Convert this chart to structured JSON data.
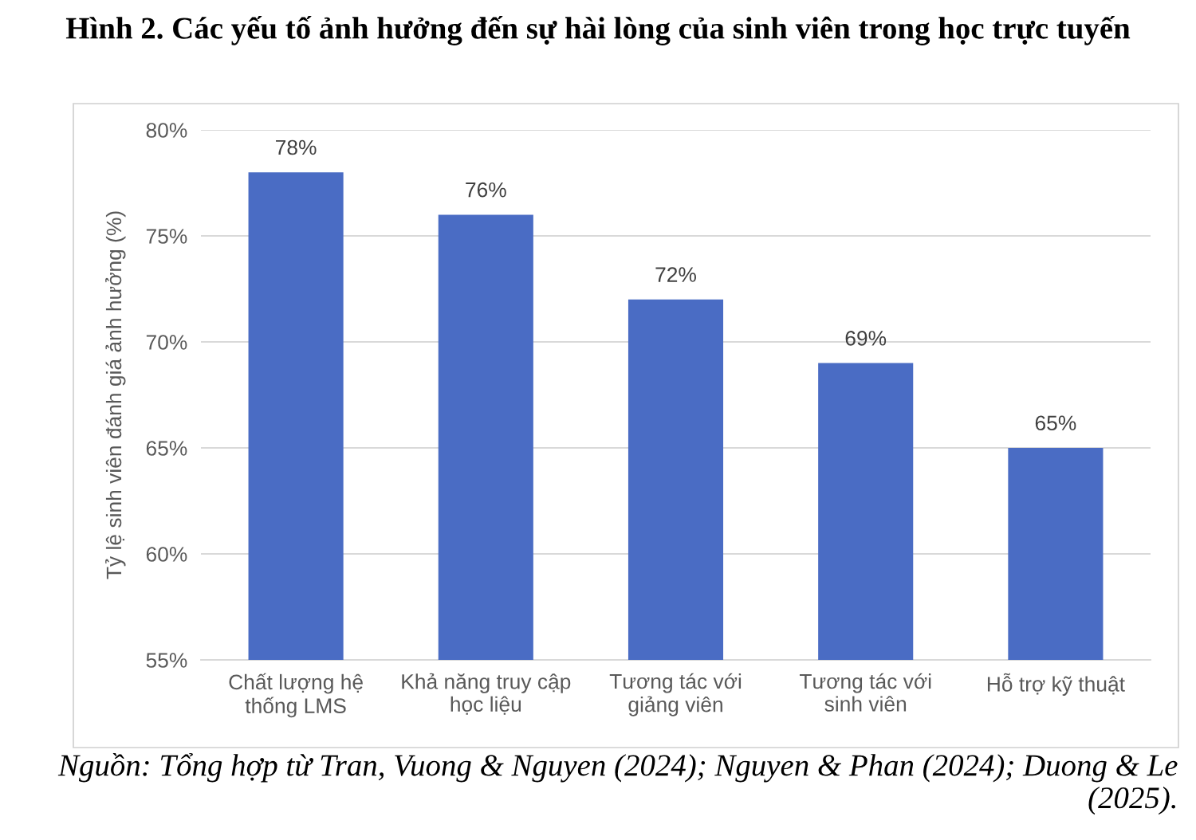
{
  "chart_data": {
    "type": "bar",
    "title": "Hình 2. Các yếu tố ảnh hưởng đến sự hài lòng của sinh viên trong học trực tuyến",
    "ylabel": "Tỷ lệ sinh viên đánh giá ảnh hưởng (%)",
    "categories": [
      "Chất lượng hệ thống LMS",
      "Khả năng truy cập học liệu",
      "Tương tác với giảng viên",
      "Tương tác với sinh viên",
      "Hỗ trợ kỹ thuật"
    ],
    "values": [
      78,
      76,
      72,
      69,
      65
    ],
    "color": "#4a6cc4",
    "value_labels": [
      "78%",
      "76%",
      "72%",
      "69%",
      "65%"
    ],
    "ylim": [
      55,
      80
    ],
    "yticks": [
      {
        "value": 55,
        "label": "55%"
      },
      {
        "value": 60,
        "label": "60%"
      },
      {
        "value": 65,
        "label": "65%"
      },
      {
        "value": 70,
        "label": "70%"
      },
      {
        "value": 75,
        "label": "75%"
      },
      {
        "value": 80,
        "label": "80%"
      }
    ],
    "grid": "y",
    "legend": false,
    "annotations": [
      "Nguồn: Tổng hợp từ Tran, Vuong & Nguyen (2024); Nguyen & Phan (2024); Duong & Le (2025)."
    ]
  }
}
